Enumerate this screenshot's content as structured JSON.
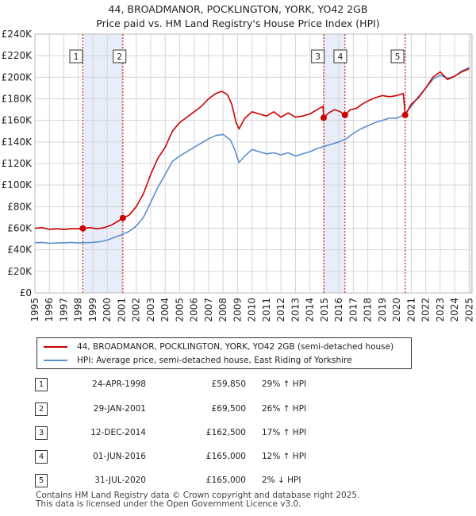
{
  "chart_data": {
    "type": "line",
    "title": "44, BROADMANOR, POCKLINGTON, YORK, YO42 2GB",
    "subtitle": "Price paid vs. HM Land Registry's House Price Index (HPI)",
    "xlim": [
      1995,
      2025.2
    ],
    "ylim": [
      0,
      240000
    ],
    "x_ticks": [
      1995,
      1996,
      1997,
      1998,
      1999,
      2000,
      2001,
      2002,
      2003,
      2004,
      2005,
      2006,
      2007,
      2008,
      2009,
      2010,
      2011,
      2012,
      2013,
      2014,
      2015,
      2016,
      2017,
      2018,
      2019,
      2020,
      2021,
      2022,
      2023,
      2024,
      2025
    ],
    "y_ticks": [
      {
        "value": 0,
        "label": "£0"
      },
      {
        "value": 20000,
        "label": "£20K"
      },
      {
        "value": 40000,
        "label": "£40K"
      },
      {
        "value": 60000,
        "label": "£60K"
      },
      {
        "value": 80000,
        "label": "£80K"
      },
      {
        "value": 100000,
        "label": "£100K"
      },
      {
        "value": 120000,
        "label": "£120K"
      },
      {
        "value": 140000,
        "label": "£140K"
      },
      {
        "value": 160000,
        "label": "£160K"
      },
      {
        "value": 180000,
        "label": "£180K"
      },
      {
        "value": 200000,
        "label": "£200K"
      },
      {
        "value": 220000,
        "label": "£220K"
      },
      {
        "value": 240000,
        "label": "£240K"
      }
    ],
    "grid": true,
    "series": [
      {
        "name": "44, BROADMANOR, POCKLINGTON, YORK, YO42 2GB (semi-detached house)",
        "color": "#cc0000",
        "points": [
          [
            1995.0,
            60000
          ],
          [
            1995.5,
            60500
          ],
          [
            1996.0,
            59000
          ],
          [
            1996.5,
            59500
          ],
          [
            1997.0,
            59000
          ],
          [
            1997.5,
            59500
          ],
          [
            1998.0,
            59500
          ],
          [
            1998.31,
            59850
          ],
          [
            1998.8,
            60500
          ],
          [
            1999.3,
            59500
          ],
          [
            1999.8,
            60500
          ],
          [
            2000.3,
            63000
          ],
          [
            2000.8,
            67000
          ],
          [
            2001.08,
            69500
          ],
          [
            2001.5,
            72000
          ],
          [
            2002.0,
            80000
          ],
          [
            2002.5,
            92000
          ],
          [
            2003.0,
            110000
          ],
          [
            2003.5,
            125000
          ],
          [
            2004.0,
            135000
          ],
          [
            2004.5,
            150000
          ],
          [
            2005.0,
            158000
          ],
          [
            2005.5,
            163000
          ],
          [
            2006.0,
            168000
          ],
          [
            2006.5,
            173000
          ],
          [
            2007.0,
            180000
          ],
          [
            2007.5,
            185000
          ],
          [
            2007.9,
            187000
          ],
          [
            2008.3,
            184000
          ],
          [
            2008.6,
            175000
          ],
          [
            2008.9,
            158000
          ],
          [
            2009.1,
            152000
          ],
          [
            2009.5,
            162000
          ],
          [
            2010.0,
            168000
          ],
          [
            2010.5,
            166000
          ],
          [
            2011.0,
            164000
          ],
          [
            2011.5,
            168000
          ],
          [
            2012.0,
            163000
          ],
          [
            2012.5,
            167000
          ],
          [
            2013.0,
            163000
          ],
          [
            2013.5,
            164000
          ],
          [
            2014.0,
            166000
          ],
          [
            2014.5,
            170000
          ],
          [
            2014.9,
            173000
          ],
          [
            2014.95,
            162500
          ],
          [
            2015.3,
            167000
          ],
          [
            2015.7,
            170000
          ],
          [
            2016.1,
            168000
          ],
          [
            2016.42,
            165000
          ],
          [
            2016.8,
            170000
          ],
          [
            2017.2,
            171000
          ],
          [
            2017.6,
            175000
          ],
          [
            2018.0,
            178000
          ],
          [
            2018.5,
            181000
          ],
          [
            2019.0,
            183000
          ],
          [
            2019.5,
            182000
          ],
          [
            2020.0,
            183000
          ],
          [
            2020.45,
            185000
          ],
          [
            2020.55,
            170000
          ],
          [
            2020.58,
            165000
          ],
          [
            2021.0,
            175000
          ],
          [
            2021.5,
            181000
          ],
          [
            2022.0,
            190000
          ],
          [
            2022.5,
            200000
          ],
          [
            2023.0,
            205000
          ],
          [
            2023.5,
            198000
          ],
          [
            2024.0,
            201000
          ],
          [
            2024.5,
            205000
          ],
          [
            2025.0,
            208000
          ]
        ]
      },
      {
        "name": "HPI: Average price, semi-detached house, East Riding of Yorkshire",
        "color": "#5b8fd0",
        "points": [
          [
            1995.0,
            46500
          ],
          [
            1995.5,
            46800
          ],
          [
            1996.0,
            46000
          ],
          [
            1996.5,
            46300
          ],
          [
            1997.0,
            46500
          ],
          [
            1997.5,
            46800
          ],
          [
            1998.0,
            46300
          ],
          [
            1998.5,
            46600
          ],
          [
            1999.0,
            46800
          ],
          [
            1999.5,
            47500
          ],
          [
            2000.0,
            49000
          ],
          [
            2000.5,
            51500
          ],
          [
            2001.0,
            54000
          ],
          [
            2001.5,
            57000
          ],
          [
            2002.0,
            62000
          ],
          [
            2002.5,
            70000
          ],
          [
            2003.0,
            84000
          ],
          [
            2003.5,
            98000
          ],
          [
            2004.0,
            110000
          ],
          [
            2004.5,
            122000
          ],
          [
            2005.0,
            127000
          ],
          [
            2005.5,
            131000
          ],
          [
            2006.0,
            135000
          ],
          [
            2006.5,
            139000
          ],
          [
            2007.0,
            143000
          ],
          [
            2007.5,
            146000
          ],
          [
            2008.0,
            147000
          ],
          [
            2008.5,
            142000
          ],
          [
            2008.8,
            133000
          ],
          [
            2009.1,
            121000
          ],
          [
            2009.5,
            127000
          ],
          [
            2010.0,
            133000
          ],
          [
            2010.5,
            131000
          ],
          [
            2011.0,
            129000
          ],
          [
            2011.5,
            130000
          ],
          [
            2012.0,
            128000
          ],
          [
            2012.5,
            130000
          ],
          [
            2013.0,
            127000
          ],
          [
            2013.5,
            129000
          ],
          [
            2014.0,
            131000
          ],
          [
            2014.5,
            134000
          ],
          [
            2015.0,
            136000
          ],
          [
            2015.5,
            138000
          ],
          [
            2016.0,
            140000
          ],
          [
            2016.5,
            143000
          ],
          [
            2017.0,
            148000
          ],
          [
            2017.5,
            152000
          ],
          [
            2018.0,
            155000
          ],
          [
            2018.5,
            158000
          ],
          [
            2019.0,
            160000
          ],
          [
            2019.5,
            162000
          ],
          [
            2020.0,
            162000
          ],
          [
            2020.5,
            165000
          ],
          [
            2021.0,
            173000
          ],
          [
            2021.5,
            182000
          ],
          [
            2022.0,
            190000
          ],
          [
            2022.5,
            198000
          ],
          [
            2023.0,
            202000
          ],
          [
            2023.5,
            199000
          ],
          [
            2024.0,
            201000
          ],
          [
            2024.5,
            206000
          ],
          [
            2025.0,
            209000
          ]
        ]
      }
    ],
    "shaded_periods": [
      [
        1998.31,
        2001.08
      ],
      [
        2014.95,
        2016.42
      ],
      [
        2020.58,
        2020.6
      ],
      [
        2025.0,
        2025.2
      ]
    ],
    "markers": [
      {
        "id": "1",
        "x": 1998.31,
        "y": 59850,
        "label_x": 1997.85
      },
      {
        "id": "2",
        "x": 2001.08,
        "y": 69500,
        "label_x": 2000.85
      },
      {
        "id": "3",
        "x": 2014.95,
        "y": 162500,
        "label_x": 2014.55
      },
      {
        "id": "4",
        "x": 2016.42,
        "y": 165000,
        "label_x": 2016.1
      },
      {
        "id": "5",
        "x": 2020.58,
        "y": 165000,
        "label_x": 2020.05
      }
    ],
    "legend": {
      "placement": "bottom",
      "entries": [
        {
          "label": "44, BROADMANOR, POCKLINGTON, YORK, YO42 2GB (semi-detached house)",
          "color": "#cc0000"
        },
        {
          "label": "HPI: Average price, semi-detached house, East Riding of Yorkshire",
          "color": "#5b8fd0"
        }
      ]
    }
  },
  "transactions": [
    {
      "num": "1",
      "date": "24-APR-1998",
      "price": "£59,850",
      "hpi": "29% ↑ HPI"
    },
    {
      "num": "2",
      "date": "29-JAN-2001",
      "price": "£69,500",
      "hpi": "26% ↑ HPI"
    },
    {
      "num": "3",
      "date": "12-DEC-2014",
      "price": "£162,500",
      "hpi": "17% ↑ HPI"
    },
    {
      "num": "4",
      "date": "01-JUN-2016",
      "price": "£165,000",
      "hpi": "12% ↑ HPI"
    },
    {
      "num": "5",
      "date": "31-JUL-2020",
      "price": "£165,000",
      "hpi": "2% ↓ HPI"
    }
  ],
  "footer": {
    "line1": "Contains HM Land Registry data © Crown copyright and database right 2025.",
    "line2": "This data is licensed under the Open Government Licence v3.0."
  }
}
